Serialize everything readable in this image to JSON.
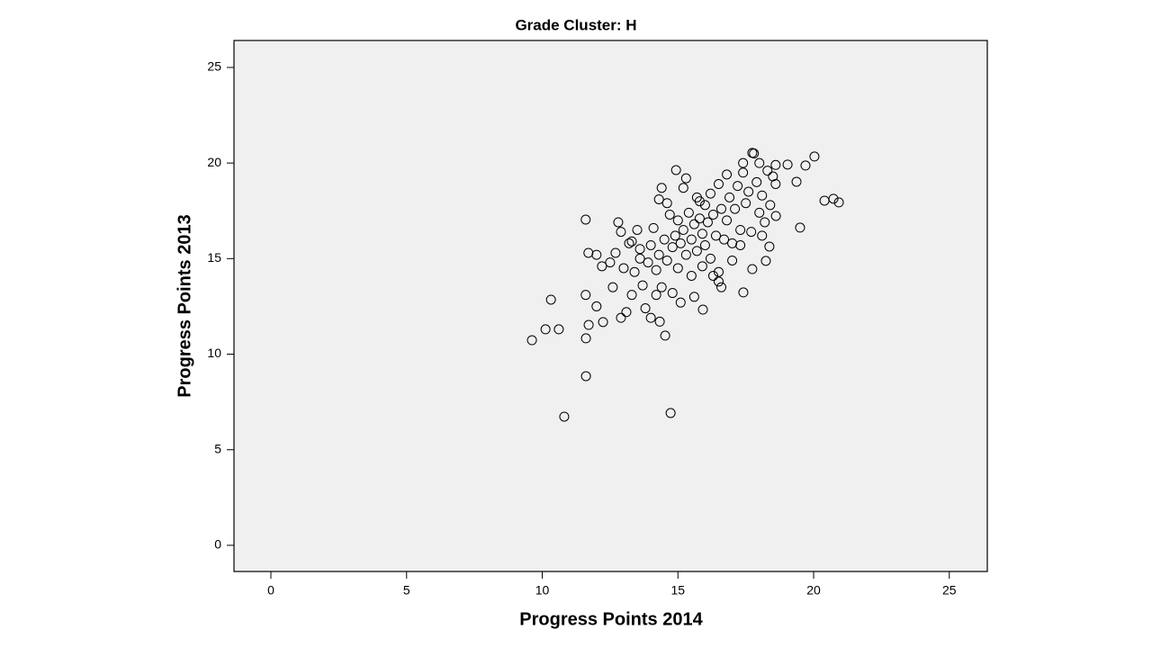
{
  "chart_data": {
    "type": "scatter",
    "title": "Grade Cluster: H",
    "x_label": "Progress Points 2014",
    "y_label": "Progress Points 2013",
    "xlim": [
      -1.36,
      26.4
    ],
    "ylim": [
      -1.37,
      26.41
    ],
    "xticks": [
      0,
      5,
      10,
      15,
      20,
      25
    ],
    "yticks": [
      0,
      5,
      10,
      15,
      20,
      25
    ],
    "color": "#000000",
    "background": "#f0f0f0",
    "x": [
      9.62,
      10.12,
      10.61,
      10.32,
      10.81,
      11.61,
      11.61,
      11.71,
      11.6,
      11.6,
      12.24,
      12.0,
      14.73,
      14.53,
      14.33,
      15.92,
      14.93,
      17.74,
      20.03,
      19.7,
      20.4,
      20.73,
      20.93,
      19.5,
      17.41,
      17.74,
      18.24,
      18.37,
      19.04,
      19.37,
      18.61,
      12.5,
      12.7,
      12.8,
      12.9,
      13.0,
      13.1,
      12.9,
      13.2,
      13.3,
      13.4,
      13.5,
      13.6,
      13.7,
      13.8,
      13.9,
      14.0,
      14.0,
      14.1,
      14.2,
      14.3,
      14.3,
      14.4,
      14.4,
      14.5,
      14.6,
      14.7,
      14.8,
      14.8,
      14.9,
      15.0,
      15.0,
      15.1,
      15.1,
      15.2,
      15.2,
      15.3,
      15.3,
      15.4,
      15.5,
      15.5,
      15.6,
      15.7,
      15.7,
      15.8,
      15.9,
      15.9,
      16.0,
      16.0,
      16.1,
      16.2,
      16.2,
      16.3,
      16.4,
      16.5,
      16.5,
      16.6,
      16.5,
      16.6,
      16.7,
      16.8,
      16.8,
      16.9,
      17.0,
      17.1,
      17.2,
      17.3,
      17.4,
      17.4,
      17.5,
      17.6,
      17.7,
      17.8,
      17.9,
      18.0,
      18.0,
      18.1,
      18.2,
      18.3,
      18.4,
      18.5,
      18.6,
      18.6,
      18.1,
      17.0,
      16.3,
      15.6,
      14.2,
      13.6,
      12.2,
      12.0,
      11.7,
      12.6,
      13.3,
      14.6,
      15.8,
      17.3
    ],
    "values": [
      10.73,
      11.3,
      11.3,
      12.85,
      6.73,
      8.85,
      10.83,
      11.53,
      13.1,
      17.04,
      11.68,
      12.5,
      6.92,
      10.97,
      11.7,
      12.33,
      19.63,
      20.53,
      20.34,
      19.87,
      18.03,
      18.13,
      17.94,
      16.62,
      13.23,
      14.45,
      14.88,
      15.63,
      19.92,
      19.02,
      17.23,
      14.8,
      15.3,
      16.9,
      16.4,
      14.5,
      12.2,
      11.9,
      15.8,
      13.1,
      14.3,
      16.5,
      15.0,
      13.6,
      12.4,
      14.8,
      15.7,
      11.9,
      16.6,
      14.4,
      15.2,
      18.1,
      18.7,
      13.5,
      16.0,
      14.9,
      17.3,
      15.6,
      13.2,
      16.2,
      17.0,
      14.5,
      15.8,
      12.7,
      16.5,
      18.7,
      19.2,
      15.2,
      17.4,
      16.0,
      14.1,
      16.8,
      15.4,
      18.2,
      17.1,
      16.3,
      14.6,
      17.8,
      15.7,
      16.9,
      18.4,
      15.0,
      17.3,
      16.2,
      14.3,
      13.8,
      13.5,
      18.9,
      17.6,
      16.0,
      19.4,
      17.0,
      18.2,
      15.8,
      17.6,
      18.8,
      16.5,
      19.5,
      20.0,
      17.9,
      18.5,
      16.4,
      20.5,
      19.0,
      17.4,
      20.0,
      18.3,
      16.9,
      19.6,
      17.8,
      19.3,
      18.9,
      19.9,
      16.2,
      14.9,
      14.1,
      13.0,
      13.1,
      15.5,
      14.6,
      15.2,
      15.3,
      13.5,
      15.9,
      17.9,
      18.0,
      15.7
    ]
  }
}
